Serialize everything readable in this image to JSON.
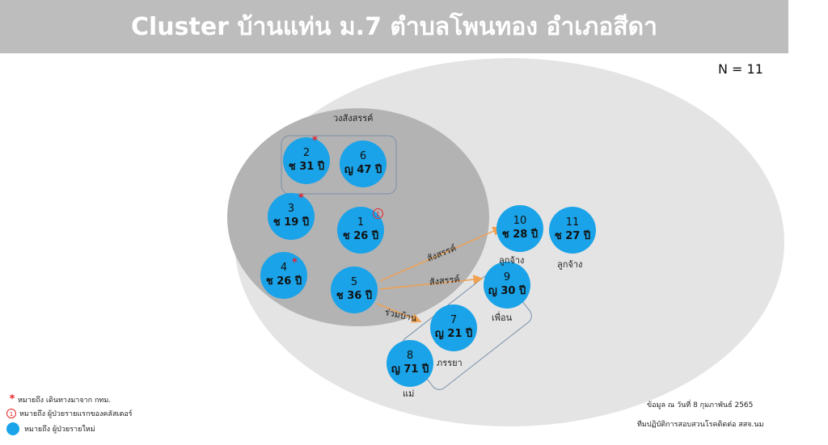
{
  "header": {
    "title": "Cluster บ้านแท่น ม.7 ตำบลโพนทอง อำเภอสีดา"
  },
  "total": "N = 11",
  "groups": {
    "social": "วงสังสรรค์"
  },
  "cases": [
    {
      "num": "1",
      "info": "ช 26 ปี",
      "first_case": true,
      "from_bangkok": false
    },
    {
      "num": "2",
      "info": "ช 31 ปี",
      "first_case": false,
      "from_bangkok": true
    },
    {
      "num": "3",
      "info": "ช 19 ปี",
      "first_case": false,
      "from_bangkok": true
    },
    {
      "num": "4",
      "info": "ช 26 ปี",
      "first_case": false,
      "from_bangkok": true
    },
    {
      "num": "5",
      "info": "ช 36 ปี",
      "first_case": false,
      "from_bangkok": false
    },
    {
      "num": "6",
      "info": "ญ 47 ปี",
      "first_case": false,
      "from_bangkok": false
    },
    {
      "num": "7",
      "info": "ญ 21 ปี",
      "first_case": false,
      "from_bangkok": false
    },
    {
      "num": "8",
      "info": "ญ 71 ปี",
      "first_case": false,
      "from_bangkok": false
    },
    {
      "num": "9",
      "info": "ญ 30 ปี",
      "first_case": false,
      "from_bangkok": false
    },
    {
      "num": "10",
      "info": "ช 28 ปี",
      "first_case": false,
      "from_bangkok": false
    },
    {
      "num": "11",
      "info": "ช 27 ปี",
      "first_case": false,
      "from_bangkok": false
    }
  ],
  "case_labels": {
    "c7": "ภรรยา",
    "c8": "แม่",
    "c9": "เพื่อน",
    "c10": "ลูกจ้าง",
    "c11": "ลูกจ้าง"
  },
  "links": [
    {
      "from": "5",
      "to": "10",
      "label": "สังสรรค์"
    },
    {
      "from": "5",
      "to": "9",
      "label": "สังสรรค์"
    },
    {
      "from": "5",
      "to": "7",
      "label": "ร่วมบ้าน"
    }
  ],
  "first_marker_text": "1",
  "colors": {
    "header": "#bdbdbd",
    "case_fill": "#1aa3e8",
    "outer": "#e4e4e4",
    "inner": "#b3b3b3",
    "arrow": "#f0a050",
    "marker": "#e8232a"
  },
  "legend": [
    {
      "icon": "star",
      "text": "หมายถึง เดินทางมาจาก กทม."
    },
    {
      "icon": "circle-1",
      "marker": "1",
      "text": "หมายถึง ผู้ป่วยรายแรกของคลัสเตอร์"
    },
    {
      "icon": "blue-dot",
      "text": "หมายถึง ผู้ป่วยรายใหม่"
    }
  ],
  "source": {
    "date": "ข้อมูล ณ วันที่ 8 กุมภาพันธ์ 2565",
    "team": "ทีมปฏิบัติการสอบสวนโรคติดต่อ สสจ.นม"
  }
}
